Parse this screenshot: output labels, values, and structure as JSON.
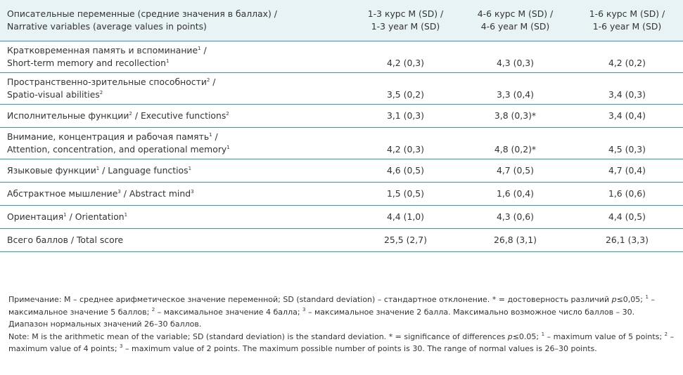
{
  "header": {
    "col0_ru": "Описательные переменные (средние значения в баллах) /",
    "col0_en": "Narrative variables (average values in points)",
    "col1_ru": "1-3 курс M (SD) /",
    "col1_en": "1-3 year M (SD)",
    "col2_ru": "4-6 курс M (SD) /",
    "col2_en": "4-6 year M (SD)",
    "col3_ru": "1-6 курс M (SD) /",
    "col3_en": "1-6 year M (SD)"
  },
  "rows": [
    {
      "ru": "Кратковременная память и вспоминание",
      "ru_sup": "1",
      "ru_sep": " /",
      "en": "Short-term memory and recollection",
      "en_sup": "1",
      "v1": "4,2 (0,3)",
      "v2": "4,3 (0,3)",
      "v3": "4,2 (0,2)"
    },
    {
      "ru": "Пространственно-зрительные способности",
      "ru_sup": "2",
      "ru_sep": " /",
      "en": "Spatio-visual abilities",
      "en_sup": "2",
      "v1": "3,5 (0,2)",
      "v2": "3,3 (0,4)",
      "v3": "3,4 (0,3)"
    },
    {
      "ru": "Исполнительные функции",
      "ru_sup": "2",
      "ru_sep": " / ",
      "en": "Executive functions",
      "en_sup": "2",
      "v1": "3,1 (0,3)",
      "v2": "3,8 (0,3)*",
      "v3": "3,4 (0,4)"
    },
    {
      "ru": "Внимание, концентрация и рабочая память",
      "ru_sup": "1",
      "ru_sep": " /",
      "en": "Attention, concentration, and operational memory",
      "en_sup": "1",
      "v1": "4,2 (0,3)",
      "v2": "4,8 (0,2)*",
      "v3": "4,5 (0,3)"
    },
    {
      "ru": "Языковые функции",
      "ru_sup": "1",
      "ru_sep": " / ",
      "en": "Language functios",
      "en_sup": "1",
      "v1": "4,6 (0,5)",
      "v2": "4,7 (0,5)",
      "v3": "4,7 (0,4)"
    },
    {
      "ru": "Абстрактное мышление",
      "ru_sup": "3",
      "ru_sep": " / ",
      "en": "Abstract mind",
      "en_sup": "3",
      "v1": "1,5 (0,5)",
      "v2": "1,6 (0,4)",
      "v3": "1,6 (0,6)"
    },
    {
      "ru": "Ориентация",
      "ru_sup": "1",
      "ru_sep": " / ",
      "en": "Orientation",
      "en_sup": "1",
      "v1": "4,4 (1,0)",
      "v2": "4,3 (0,6)",
      "v3": "4,4 (0,5)"
    },
    {
      "ru": "Всего баллов / Total score",
      "v1": "25,5 (2,7)",
      "v2": "26,8 (3,1)",
      "v3": "26,1 (3,3)"
    }
  ],
  "note_ru": {
    "a": "Примечание: M – среднее арифметическое значение переменной; SD (standard deviation) – стандартное отклонение. * = достоверность различий ",
    "p": "p",
    "b": "≤0,05; ",
    "s1": "1",
    "c": " – максимальное значение 5 баллов; ",
    "s2": "2",
    "d": " – максимальное значение 4 балла; ",
    "s3": "3",
    "e": " – максимальное значение 2 балла. Максимально возможное число баллов – 30. Диапазон нормальных значений 26–30 баллов."
  },
  "note_en": {
    "a": "Note: M is the arithmetic mean of the variable; SD (standard deviation) is the standard deviation. * = significance of differences ",
    "p": "p",
    "b": "≤0.05; ",
    "s1": "1",
    "c": " – maximum value of 5 points; ",
    "s2": "2",
    "d": " – maximum value of 4 points; ",
    "s3": "3",
    "e": " – maximum value of 2 points. The maximum possible number of points is 30. The range of normal values is 26–30 points."
  }
}
